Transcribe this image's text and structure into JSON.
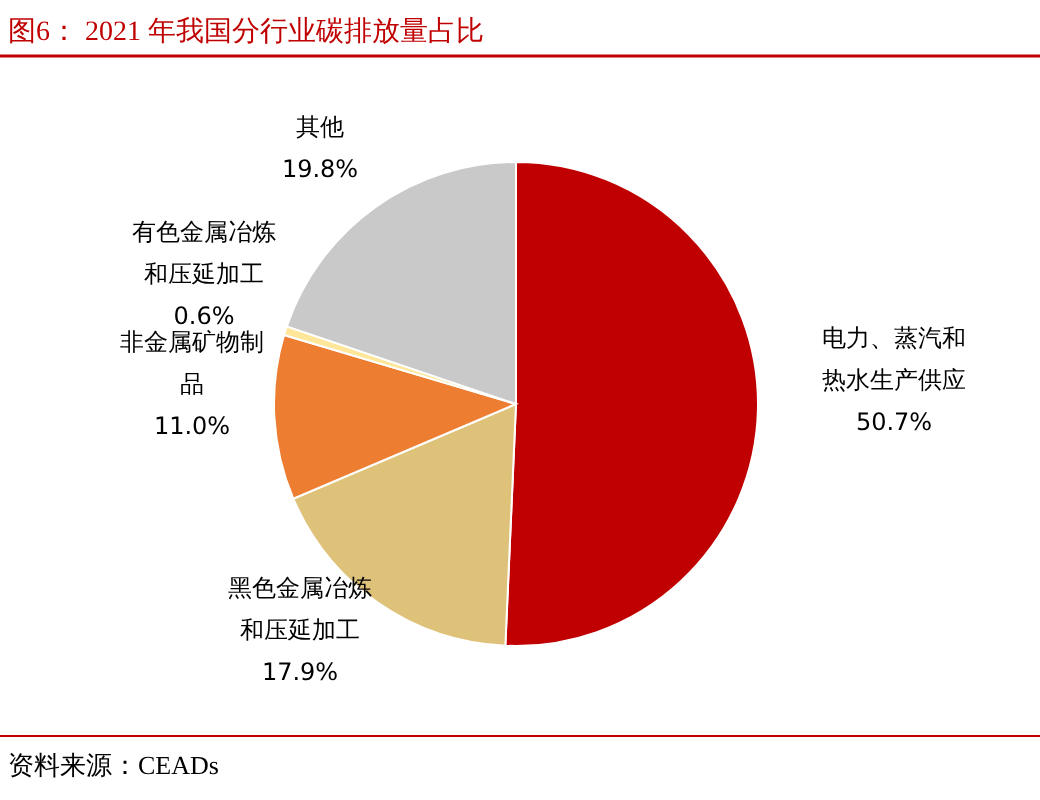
{
  "chart_data": {
    "type": "pie",
    "title": "图6： 2021 年我国分行业碳排放量占比",
    "categories": [
      "电力、蒸汽和热水生产供应",
      "黑色金属冶炼和压延加工",
      "非金属矿物制品",
      "有色金属冶炼和压延加工",
      "其他"
    ],
    "values": [
      50.7,
      17.9,
      11.0,
      0.6,
      19.8
    ],
    "value_labels": [
      "50.7%",
      "17.9%",
      "11.0%",
      "0.6%",
      "19.8%"
    ],
    "colors": [
      "#c00000",
      "#dfc27a",
      "#ed7d31",
      "#ffe699",
      "#c9c9c9"
    ],
    "annotations": [
      "资料来源：CEADs"
    ]
  }
}
